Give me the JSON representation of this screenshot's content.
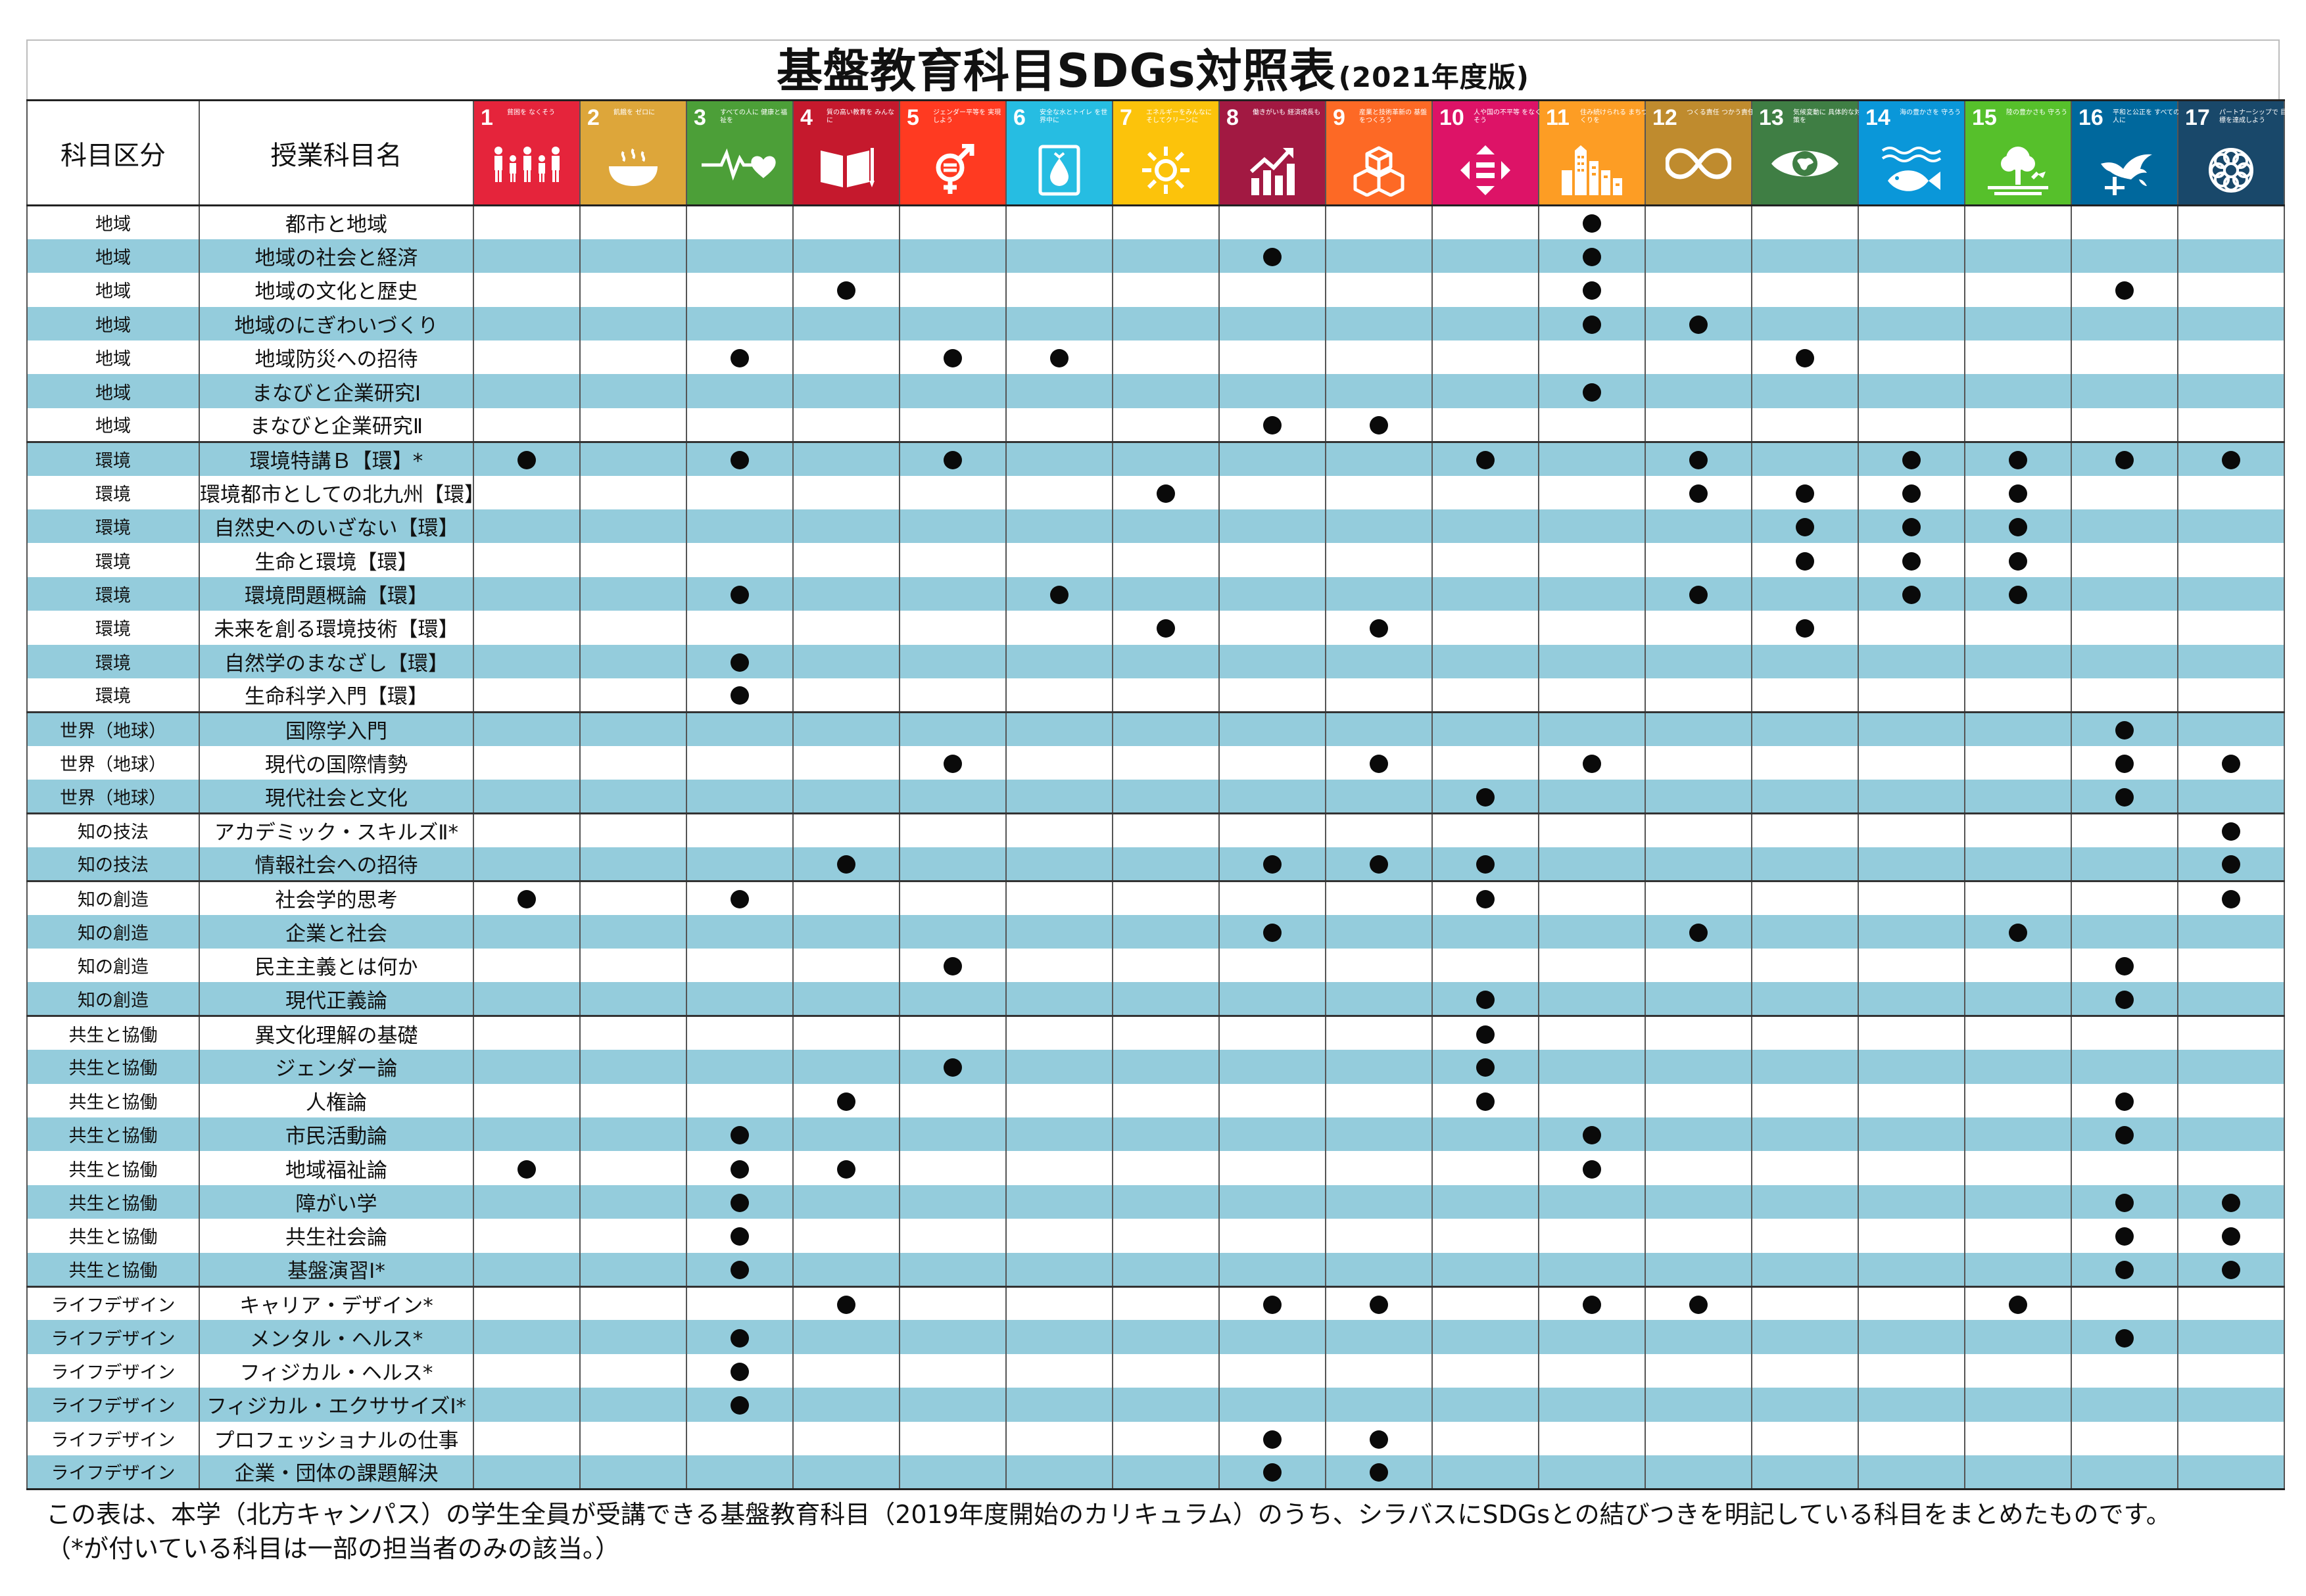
{
  "title": "基盤教育科目SDGs対照表",
  "subtitle": "(2021年度版)",
  "headers": {
    "category": "科目区分",
    "course": "授業科目名"
  },
  "goals": [
    {
      "num": "1",
      "label": "貧困を なくそう",
      "color": "#e5243b",
      "icon": "people-icon"
    },
    {
      "num": "2",
      "label": "飢餓を ゼロに",
      "color": "#dda63a",
      "icon": "bowl-icon"
    },
    {
      "num": "3",
      "label": "すべての人に 健康と福祉を",
      "color": "#4c9f38",
      "icon": "heartbeat-icon"
    },
    {
      "num": "4",
      "label": "質の高い教育を みんなに",
      "color": "#c5192d",
      "icon": "book-icon"
    },
    {
      "num": "5",
      "label": "ジェンダー平等を 実現しよう",
      "color": "#ff3a21",
      "icon": "gender-icon"
    },
    {
      "num": "6",
      "label": "安全な水とトイレ を世界中に",
      "color": "#26bde2",
      "icon": "water-drop-icon"
    },
    {
      "num": "7",
      "label": "エネルギーをみんなに そしてクリーンに",
      "color": "#fcc30b",
      "icon": "sun-icon"
    },
    {
      "num": "8",
      "label": "働きがいも 経済成長も",
      "color": "#a21942",
      "icon": "growth-chart-icon"
    },
    {
      "num": "9",
      "label": "産業と技術革新の 基盤をつくろう",
      "color": "#fd6925",
      "icon": "cubes-icon"
    },
    {
      "num": "10",
      "label": "人や国の不平等 をなくそう",
      "color": "#dd1367",
      "icon": "equality-icon"
    },
    {
      "num": "11",
      "label": "住み続けられる まちづくりを",
      "color": "#fd9d24",
      "icon": "city-icon"
    },
    {
      "num": "12",
      "label": "つくる責任 つかう責任",
      "color": "#bf8b2e",
      "icon": "infinity-icon"
    },
    {
      "num": "13",
      "label": "気候変動に 具体的な対策を",
      "color": "#3f7e44",
      "icon": "eye-globe-icon"
    },
    {
      "num": "14",
      "label": "海の豊かさを 守ろう",
      "color": "#0a97d9",
      "icon": "fish-icon"
    },
    {
      "num": "15",
      "label": "陸の豊かさも 守ろう",
      "color": "#56c02b",
      "icon": "tree-icon"
    },
    {
      "num": "16",
      "label": "平和と公正を すべての人に",
      "color": "#00689d",
      "icon": "dove-icon"
    },
    {
      "num": "17",
      "label": "パートナーシップで 目標を達成しよう",
      "color": "#19486a",
      "icon": "flower-rings-icon"
    }
  ],
  "mark": "●",
  "rows": [
    {
      "category": "地域",
      "course": "都市と地域",
      "goals": [
        11
      ]
    },
    {
      "category": "地域",
      "course": "地域の社会と経済",
      "goals": [
        8,
        11
      ]
    },
    {
      "category": "地域",
      "course": "地域の文化と歴史",
      "goals": [
        4,
        11,
        16
      ]
    },
    {
      "category": "地域",
      "course": "地域のにぎわいづくり",
      "goals": [
        11,
        12
      ]
    },
    {
      "category": "地域",
      "course": "地域防災への招待",
      "goals": [
        3,
        5,
        6,
        13
      ]
    },
    {
      "category": "地域",
      "course": "まなびと企業研究Ⅰ",
      "goals": [
        11
      ]
    },
    {
      "category": "地域",
      "course": "まなびと企業研究Ⅱ",
      "goals": [
        8,
        9
      ]
    },
    {
      "category": "環境",
      "course": "環境特講Ｂ【環】*",
      "goals": [
        1,
        3,
        5,
        10,
        12,
        14,
        15,
        16,
        17
      ]
    },
    {
      "category": "環境",
      "course": "環境都市としての北九州【環】",
      "goals": [
        7,
        12,
        13,
        14,
        15
      ]
    },
    {
      "category": "環境",
      "course": "自然史へのいざない【環】",
      "goals": [
        13,
        14,
        15
      ]
    },
    {
      "category": "環境",
      "course": "生命と環境【環】",
      "goals": [
        13,
        14,
        15
      ]
    },
    {
      "category": "環境",
      "course": "環境問題概論【環】",
      "goals": [
        3,
        6,
        12,
        14,
        15
      ]
    },
    {
      "category": "環境",
      "course": "未来を創る環境技術【環】",
      "goals": [
        7,
        9,
        13
      ]
    },
    {
      "category": "環境",
      "course": "自然学のまなざし【環】",
      "goals": [
        3
      ]
    },
    {
      "category": "環境",
      "course": "生命科学入門【環】",
      "goals": [
        3
      ]
    },
    {
      "category": "世界（地球）",
      "course": "国際学入門",
      "goals": [
        16
      ]
    },
    {
      "category": "世界（地球）",
      "course": "現代の国際情勢",
      "goals": [
        5,
        9,
        11,
        16,
        17
      ]
    },
    {
      "category": "世界（地球）",
      "course": "現代社会と文化",
      "goals": [
        10,
        16
      ]
    },
    {
      "category": "知の技法",
      "course": "アカデミック・スキルズⅡ*",
      "goals": [
        17
      ]
    },
    {
      "category": "知の技法",
      "course": "情報社会への招待",
      "goals": [
        4,
        8,
        9,
        10,
        17
      ]
    },
    {
      "category": "知の創造",
      "course": "社会学的思考",
      "goals": [
        1,
        3,
        10,
        17
      ]
    },
    {
      "category": "知の創造",
      "course": "企業と社会",
      "goals": [
        8,
        12,
        15
      ]
    },
    {
      "category": "知の創造",
      "course": "民主主義とは何か",
      "goals": [
        5,
        16
      ]
    },
    {
      "category": "知の創造",
      "course": "現代正義論",
      "goals": [
        10,
        16
      ]
    },
    {
      "category": "共生と協働",
      "course": "異文化理解の基礎",
      "goals": [
        10
      ]
    },
    {
      "category": "共生と協働",
      "course": "ジェンダー論",
      "goals": [
        5,
        10
      ]
    },
    {
      "category": "共生と協働",
      "course": "人権論",
      "goals": [
        4,
        10,
        16
      ]
    },
    {
      "category": "共生と協働",
      "course": "市民活動論",
      "goals": [
        3,
        11,
        16
      ]
    },
    {
      "category": "共生と協働",
      "course": "地域福祉論",
      "goals": [
        1,
        3,
        4,
        11
      ]
    },
    {
      "category": "共生と協働",
      "course": "障がい学",
      "goals": [
        3,
        16,
        17
      ]
    },
    {
      "category": "共生と協働",
      "course": "共生社会論",
      "goals": [
        3,
        16,
        17
      ]
    },
    {
      "category": "共生と協働",
      "course": "基盤演習Ⅰ*",
      "goals": [
        3,
        16,
        17
      ]
    },
    {
      "category": "ライフデザイン",
      "course": "キャリア・デザイン*",
      "goals": [
        4,
        8,
        9,
        11,
        12,
        15
      ]
    },
    {
      "category": "ライフデザイン",
      "course": "メンタル・ヘルス*",
      "goals": [
        3,
        16
      ]
    },
    {
      "category": "ライフデザイン",
      "course": "フィジカル・ヘルス*",
      "goals": [
        3
      ]
    },
    {
      "category": "ライフデザイン",
      "course": "フィジカル・エクササイズⅠ*",
      "goals": [
        3
      ]
    },
    {
      "category": "ライフデザイン",
      "course": "プロフェッショナルの仕事",
      "goals": [
        8,
        9
      ]
    },
    {
      "category": "ライフデザイン",
      "course": "企業・団体の課題解決",
      "goals": [
        8,
        9
      ]
    }
  ],
  "footnote": {
    "line1": "この表は、本学（北方キャンパス）の学生全員が受講できる基盤教育科目（2019年度開始のカリキュラム）のうち、シラバスにSDGsとの結びつきを明記している科目をまとめたものです。",
    "line2": "（*が付いている科目は一部の担当者のみの該当。）"
  }
}
